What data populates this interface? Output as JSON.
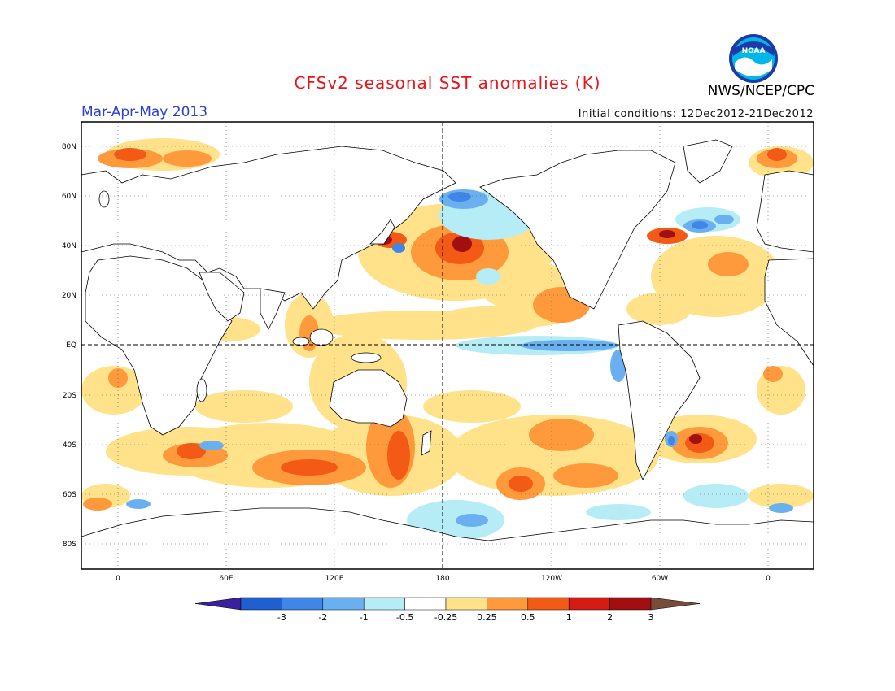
{
  "header": {
    "title": "CFSv2 seasonal SST anomalies (K)",
    "period": "Mar-Apr-May 2013",
    "initial_conditions": "Initial conditions: 12Dec2012-21Dec2012",
    "agency": "NWS/NCEP/CPC",
    "logo_text": "NOAA"
  },
  "map": {
    "lat_labels": [
      "80N",
      "60N",
      "40N",
      "20N",
      "EQ",
      "20S",
      "40S",
      "60S",
      "80S"
    ],
    "lon_labels": [
      "0",
      "60E",
      "120E",
      "180",
      "120W",
      "60W",
      "0"
    ]
  },
  "colorbar": {
    "labels": [
      "-3",
      "-2",
      "-1",
      "-0.5",
      "-0.25",
      "0.25",
      "0.5",
      "1",
      "2",
      "3"
    ],
    "colors": [
      "#3b1f9c",
      "#1f5fd0",
      "#3f86e6",
      "#6ab0f0",
      "#b6ecf6",
      "#ffffff",
      "#ffe28a",
      "#ff9a3c",
      "#f25a16",
      "#d51b12",
      "#a20f10",
      "#7a4a3a"
    ]
  },
  "colors": {
    "land": "#ffffff",
    "coastline": "#000000",
    "frame": "#000000",
    "title": "#e8141a",
    "period": "#2a3fd6"
  }
}
